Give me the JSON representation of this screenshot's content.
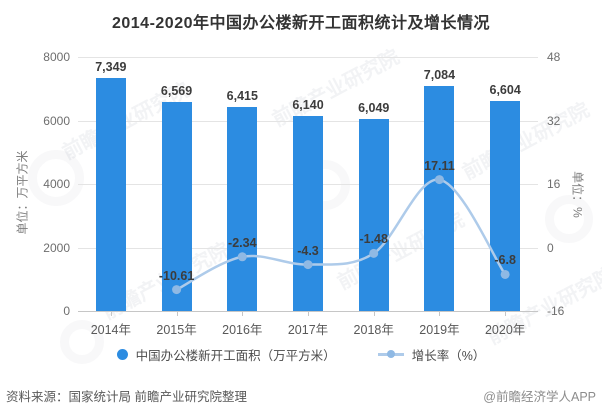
{
  "title": "2014-2020年中国办公楼新开工面积统计及增长情况",
  "chart_data": {
    "type": "bar",
    "subtype": "combo-bar-line-dual-axis",
    "categories": [
      "2014年",
      "2015年",
      "2016年",
      "2017年",
      "2018年",
      "2019年",
      "2020年"
    ],
    "series": [
      {
        "name": "中国办公楼新开工面积（万平方米）",
        "type": "bar",
        "axis": "left",
        "color": "#2c8ce1",
        "values": [
          7349,
          6569,
          6415,
          6140,
          6049,
          7084,
          6604
        ],
        "labels": [
          "7,349",
          "6,569",
          "6,415",
          "6,140",
          "6,049",
          "7,084",
          "6,604"
        ]
      },
      {
        "name": "增长率（%）",
        "type": "line",
        "axis": "right",
        "color": "#aecbea",
        "marker_color": "#8fb9e4",
        "values": [
          null,
          -10.61,
          -2.34,
          -4.3,
          -1.48,
          17.11,
          -6.8
        ],
        "labels": [
          null,
          "-10.61",
          "-2.34",
          "-4.3",
          "-1.48",
          "17.11",
          "-6.8"
        ]
      }
    ],
    "left_axis": {
      "title": "单位：万平方米",
      "ticks": [
        8000,
        6000,
        4000,
        2000,
        0
      ],
      "lim": [
        0,
        8000
      ]
    },
    "right_axis": {
      "title": "单位：%",
      "ticks": [
        48,
        32,
        16,
        0,
        -16
      ],
      "lim": [
        -16,
        48
      ]
    },
    "grid": true,
    "legend_position": "bottom"
  },
  "footer": {
    "source": "资料来源：国家统计局 前瞻产业研究院整理",
    "credit": "@前瞻经济学人APP"
  },
  "watermark": {
    "text": "前瞻产业研究院"
  }
}
